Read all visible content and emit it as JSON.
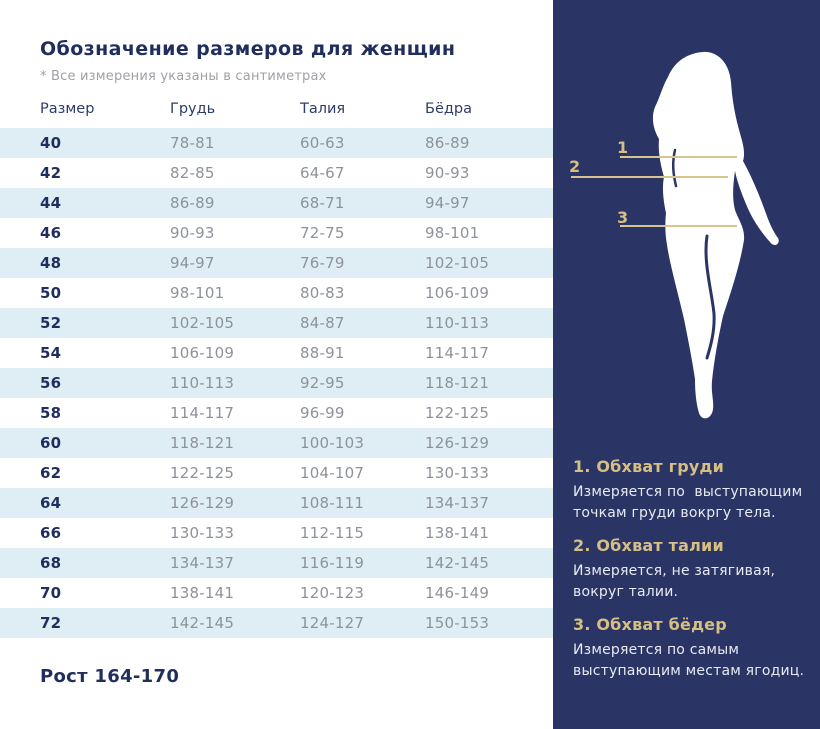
{
  "header": {
    "title": "Обозначение размеров для женщин",
    "note": "* Все измерения указаны в сантиметрах"
  },
  "table": {
    "columns": [
      "Размер",
      "Грудь",
      "Талия",
      "Бёдра"
    ],
    "rows": [
      {
        "size": "40",
        "chest": "78-81",
        "waist": "60-63",
        "hips": "86-89"
      },
      {
        "size": "42",
        "chest": "82-85",
        "waist": "64-67",
        "hips": "90-93"
      },
      {
        "size": "44",
        "chest": "86-89",
        "waist": "68-71",
        "hips": "94-97"
      },
      {
        "size": "46",
        "chest": "90-93",
        "waist": "72-75",
        "hips": "98-101"
      },
      {
        "size": "48",
        "chest": "94-97",
        "waist": "76-79",
        "hips": "102-105"
      },
      {
        "size": "50",
        "chest": "98-101",
        "waist": "80-83",
        "hips": "106-109"
      },
      {
        "size": "52",
        "chest": "102-105",
        "waist": "84-87",
        "hips": "110-113"
      },
      {
        "size": "54",
        "chest": "106-109",
        "waist": "88-91",
        "hips": "114-117"
      },
      {
        "size": "56",
        "chest": "110-113",
        "waist": "92-95",
        "hips": "118-121"
      },
      {
        "size": "58",
        "chest": "114-117",
        "waist": "96-99",
        "hips": "122-125"
      },
      {
        "size": "60",
        "chest": "118-121",
        "waist": "100-103",
        "hips": "126-129"
      },
      {
        "size": "62",
        "chest": "122-125",
        "waist": "104-107",
        "hips": "130-133"
      },
      {
        "size": "64",
        "chest": "126-129",
        "waist": "108-111",
        "hips": "134-137"
      },
      {
        "size": "66",
        "chest": "130-133",
        "waist": "112-115",
        "hips": "138-141"
      },
      {
        "size": "68",
        "chest": "134-137",
        "waist": "116-119",
        "hips": "142-145"
      },
      {
        "size": "70",
        "chest": "138-141",
        "waist": "120-123",
        "hips": "146-149"
      },
      {
        "size": "72",
        "chest": "142-145",
        "waist": "124-127",
        "hips": "150-153"
      }
    ]
  },
  "footer": {
    "height_label": "Рост 164-170"
  },
  "panel": {
    "figure_labels": [
      "1",
      "2",
      "3"
    ],
    "sections": [
      {
        "heading": "1. Обхват груди",
        "text": "Измеряется по  выступающим точкам груди вокргу тела."
      },
      {
        "heading": "2. Обхват талии",
        "text": "Измеряется, не затягивая, вокруг талии."
      },
      {
        "heading": "3. Обхват бёдер",
        "text": "Измеряется по самым выступающим местам ягодиц."
      }
    ]
  },
  "colors": {
    "panel_navy": "#2a3566",
    "title_navy": "#1f2e5c",
    "gold_accent": "#d5bf82",
    "gold_line": "#d8c48d",
    "row_alt_blue": "#dfeef5",
    "value_gray": "#8d929b",
    "panel_text": "#e8eaf1"
  }
}
